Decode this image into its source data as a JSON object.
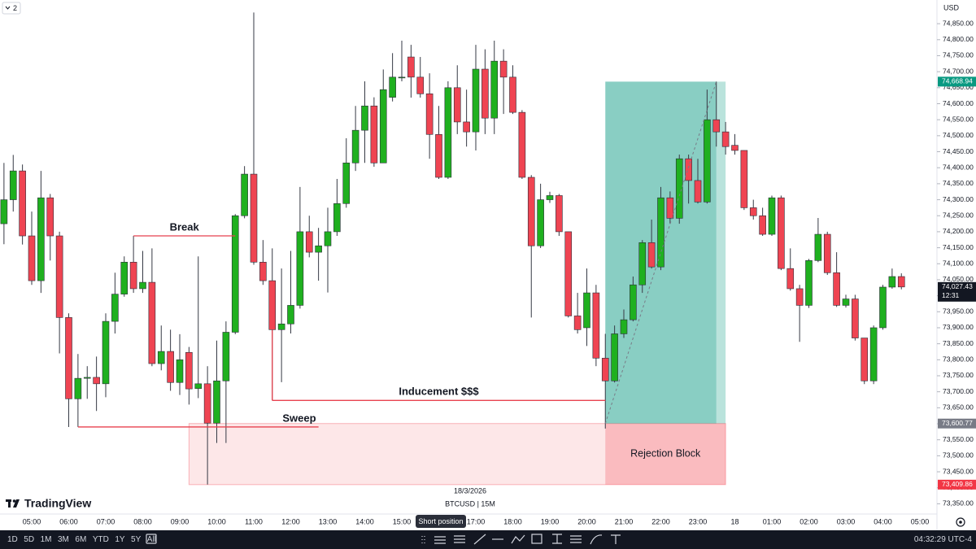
{
  "chart_data": {
    "type": "candlestick",
    "badge": "2",
    "currency": "USD",
    "brand": "TradingView",
    "date_label": "18/3/2026",
    "symbol_label": "BTCUSD | 15M",
    "up_color": "#1fb01f",
    "down_color": "#ef4452",
    "grid": false,
    "categories": [
      null,
      null,
      null,
      "05:00",
      null,
      null,
      null,
      "06:00",
      null,
      null,
      null,
      "07:00",
      null,
      null,
      null,
      "08:00",
      null,
      null,
      null,
      "09:00",
      null,
      null,
      null,
      "10:00",
      null,
      null,
      null,
      "11:00",
      null,
      null,
      null,
      "12:00",
      null,
      null,
      null,
      "13:00",
      null,
      null,
      null,
      "14:00",
      null,
      null,
      null,
      "15:00",
      null,
      null,
      null,
      null,
      null,
      null,
      null,
      "17:00",
      null,
      null,
      null,
      "18:00",
      null,
      null,
      null,
      "19:00",
      null,
      null,
      null,
      "20:00",
      null,
      null,
      null,
      "21:00",
      null,
      null,
      null,
      "22:00",
      null,
      null,
      null,
      "23:00",
      null,
      null,
      null,
      "18",
      null,
      null,
      null,
      "01:00",
      null,
      null,
      null,
      "02:00",
      null,
      null,
      null,
      "03:00",
      null,
      null,
      null,
      "04:00",
      null,
      null,
      null,
      "05:00"
    ],
    "open": [
      74225,
      74300,
      74390,
      74187,
      74047,
      74306,
      74187,
      73932,
      73678,
      73742,
      73745,
      73725,
      73920,
      74005,
      74105,
      74022,
      74042,
      73788,
      73826,
      73729,
      73823,
      73710,
      73725,
      73602,
      73734,
      73886,
      74250,
      74380,
      74105,
      74047,
      73894,
      73912,
      73970,
      74200,
      74136,
      74156,
      74200,
      74288,
      74415,
      74517,
      74593,
      74415,
      74620,
      74683,
      74746,
      74683,
      74631,
      74504,
      74370,
      74650,
      74543,
      74512,
      74708,
      74555,
      74733,
      74683,
      74573,
      74370,
      74156,
      74300,
      74313,
      74200,
      73937,
      73900,
      74009,
      73805,
      73734,
      73881,
      73925,
      74034,
      74166,
      74090,
      74306,
      74242,
      74428,
      74360,
      74293,
      74550,
      74512,
      74470,
      74454,
      74275,
      74250,
      74192,
      74306,
      74085,
      74022,
      73970,
      74110,
      74192,
      74072,
      73970,
      73990,
      73868,
      73734,
      73900,
      74027,
      74060,
      null,
      null
    ],
    "high": [
      74415,
      74440,
      74410,
      74263,
      74390,
      74318,
      74200,
      73945,
      73818,
      73780,
      73810,
      73945,
      74072,
      74123,
      74187,
      74140,
      74148,
      73907,
      73894,
      73880,
      73840,
      74123,
      73780,
      73860,
      73920,
      74255,
      74405,
      74885,
      74174,
      74148,
      74085,
      74140,
      74340,
      74250,
      74212,
      74275,
      74365,
      74492,
      74593,
      74670,
      74620,
      74707,
      74758,
      74797,
      74784,
      74746,
      74695,
      74593,
      74670,
      74720,
      74644,
      74784,
      74770,
      74797,
      74770,
      74720,
      74580,
      74377,
      74350,
      74325,
      74318,
      74200,
      74009,
      74085,
      74034,
      73881,
      73907,
      73957,
      74060,
      74174,
      74238,
      74340,
      74326,
      74441,
      74441,
      74428,
      74644,
      74669,
      74543,
      74505,
      74454,
      74300,
      74275,
      74313,
      74313,
      74148,
      74034,
      74115,
      74243,
      74200,
      74136,
      74003,
      74003,
      73868,
      73907,
      74034,
      74085,
      74070,
      null,
      null
    ],
    "low": [
      74161,
      74263,
      74160,
      74034,
      74009,
      74110,
      73820,
      73590,
      73590,
      73678,
      73640,
      73683,
      73882,
      73997,
      74009,
      74009,
      73780,
      73767,
      73703,
      73690,
      73660,
      73680,
      73410,
      73540,
      73540,
      73880,
      74242,
      74097,
      74034,
      73673,
      73730,
      73882,
      73960,
      74120,
      74047,
      74010,
      74187,
      74275,
      74390,
      74415,
      74403,
      74415,
      74607,
      74670,
      74619,
      74619,
      74428,
      74365,
      74365,
      74505,
      74466,
      74454,
      74505,
      74505,
      74568,
      74568,
      74365,
      73932,
      74149,
      74290,
      74187,
      73932,
      73882,
      73843,
      73780,
      73585,
      73729,
      73868,
      73920,
      74009,
      74085,
      74080,
      74225,
      74225,
      74288,
      74288,
      74288,
      74466,
      74441,
      74441,
      74268,
      74238,
      74187,
      74187,
      74080,
      74016,
      73856,
      73962,
      74105,
      74065,
      73965,
      73963,
      73860,
      73724,
      73724,
      73894,
      74022,
      74020,
      null,
      null
    ],
    "close": [
      74300,
      74390,
      74187,
      74047,
      74306,
      74187,
      73932,
      73678,
      73742,
      73745,
      73725,
      73920,
      74005,
      74105,
      74022,
      74042,
      73788,
      73826,
      73729,
      73800,
      73709,
      73725,
      73602,
      73734,
      73886,
      74250,
      74380,
      74105,
      74047,
      73894,
      73912,
      73970,
      74200,
      74136,
      74156,
      74200,
      74288,
      74415,
      74517,
      74593,
      74415,
      74644,
      74683,
      74683,
      74683,
      74631,
      74504,
      74370,
      74650,
      74543,
      74512,
      74708,
      74555,
      74733,
      74683,
      74573,
      74370,
      74156,
      74300,
      74313,
      74200,
      73937,
      73894,
      74009,
      73805,
      73734,
      73881,
      73925,
      74034,
      74166,
      74090,
      74306,
      74242,
      74428,
      74360,
      74293,
      74550,
      74512,
      74466,
      74454,
      74275,
      74250,
      74192,
      74306,
      74085,
      74022,
      73970,
      74110,
      74192,
      74072,
      73970,
      73990,
      73868,
      73734,
      73900,
      74027,
      74060,
      74027.43,
      null,
      null
    ],
    "ylim": [
      73318,
      74924
    ],
    "yticks": [
      {
        "value": 73350,
        "label": "73,350.00"
      },
      {
        "value": 73400,
        "label": "73,400.00"
      },
      {
        "value": 73450,
        "label": "73,450.00"
      },
      {
        "value": 73500,
        "label": "73,500.00"
      },
      {
        "value": 73550,
        "label": "73,550.00"
      },
      {
        "value": 73600,
        "label": "73,600.00"
      },
      {
        "value": 73650,
        "label": "73,650.00"
      },
      {
        "value": 73700,
        "label": "73,700.00"
      },
      {
        "value": 73750,
        "label": "73,750.00"
      },
      {
        "value": 73800,
        "label": "73,800.00"
      },
      {
        "value": 73850,
        "label": "73,850.00"
      },
      {
        "value": 73900,
        "label": "73,900.00"
      },
      {
        "value": 73950,
        "label": "73,950.00"
      },
      {
        "value": 74000,
        "label": "74,000.00"
      },
      {
        "value": 74050,
        "label": "74,050.00"
      },
      {
        "value": 74100,
        "label": "74,100.00"
      },
      {
        "value": 74150,
        "label": "74,150.00"
      },
      {
        "value": 74200,
        "label": "74,200.00"
      },
      {
        "value": 74250,
        "label": "74,250.00"
      },
      {
        "value": 74300,
        "label": "74,300.00"
      },
      {
        "value": 74350,
        "label": "74,350.00"
      },
      {
        "value": 74400,
        "label": "74,400.00"
      },
      {
        "value": 74450,
        "label": "74,450.00"
      },
      {
        "value": 74500,
        "label": "74,500.00"
      },
      {
        "value": 74550,
        "label": "74,550.00"
      },
      {
        "value": 74600,
        "label": "74,600.00"
      },
      {
        "value": 74650,
        "label": "74,650.00"
      },
      {
        "value": 74700,
        "label": "74,700.00"
      },
      {
        "value": 74750,
        "label": "74,750.00"
      },
      {
        "value": 74800,
        "label": "74,800.00"
      },
      {
        "value": 74850,
        "label": "74,850.00"
      }
    ],
    "price_tags": [
      {
        "value": 74668.94,
        "label": "74,668.94",
        "color": "#089981"
      },
      {
        "value": 74027.43,
        "label": "74,027.43",
        "color": "#131722",
        "countdown": "12:31"
      },
      {
        "value": 73600.77,
        "label": "73,600.77",
        "color": "#787b86"
      },
      {
        "value": 73409.86,
        "label": "73,409.86",
        "color": "#f23645"
      }
    ],
    "levels": [
      {
        "text": "Break",
        "value": 74187,
        "from": 14,
        "to": 25
      },
      {
        "text": "Sweep",
        "value": 73590,
        "from": 8,
        "to": 34
      },
      {
        "text": "Inducement $$$",
        "value": 73673,
        "from": 29,
        "to": 65
      }
    ],
    "zone": {
      "text": "Rejection Block",
      "low": 73409.86,
      "high": 73600.77,
      "from": 20,
      "to": 78,
      "highlight_from": 65,
      "color": "#f23645"
    },
    "position": {
      "entry": 73600.77,
      "target": 74668.94,
      "from": 65,
      "to": 77,
      "end": 78,
      "color": "#089981"
    }
  },
  "ui": {
    "timeframes": [
      "1D",
      "5D",
      "1M",
      "3M",
      "6M",
      "YTD",
      "1Y",
      "5Y",
      "All"
    ],
    "tooltip": "Short position",
    "clock": "04:32:29 UTC-4"
  }
}
